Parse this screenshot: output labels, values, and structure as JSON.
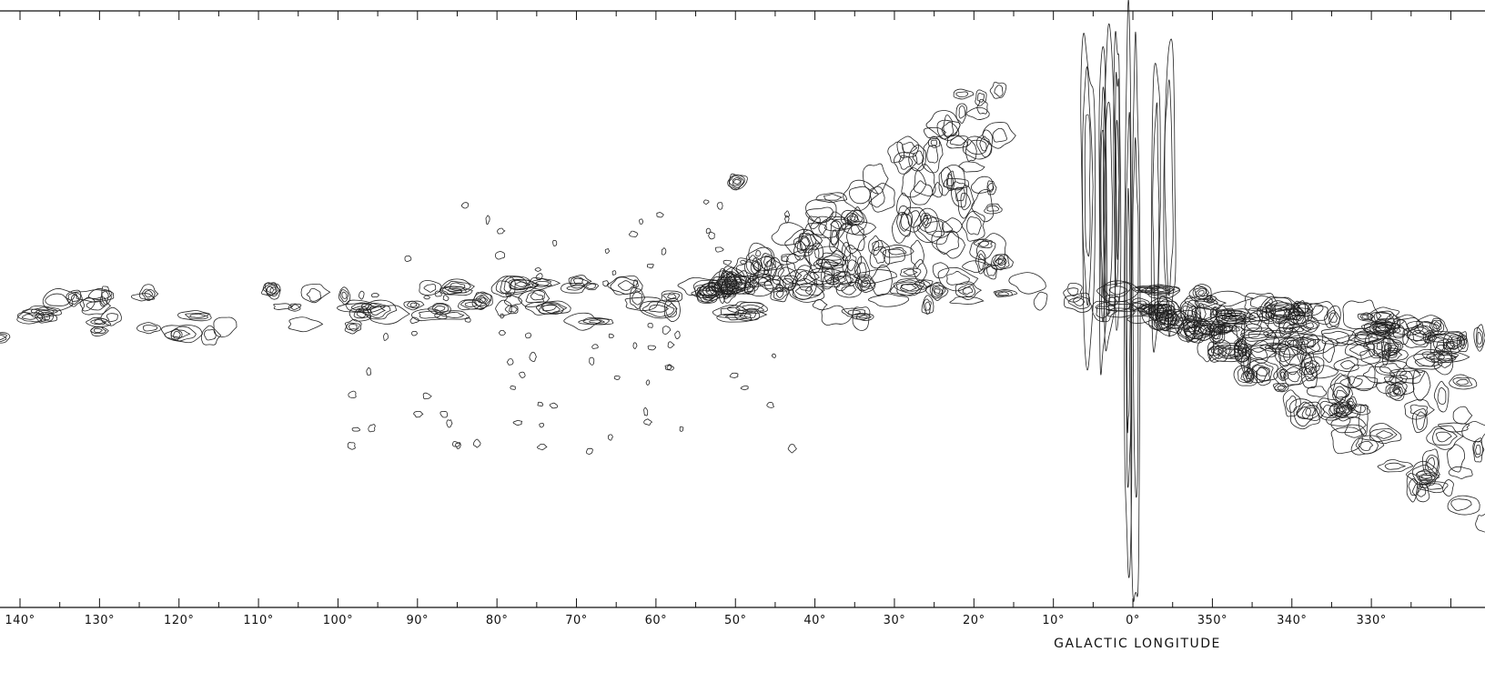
{
  "figure": {
    "x_axis": {
      "title": "GALACTIC LONGITUDE",
      "tick_labels": [
        "140°",
        "130°",
        "120°",
        "110°",
        "100°",
        "90°",
        "80°",
        "70°",
        "60°",
        "50°",
        "40°",
        "30°",
        "20°",
        "10°",
        "0°",
        "350°",
        "340°",
        "330°"
      ]
    }
  }
}
